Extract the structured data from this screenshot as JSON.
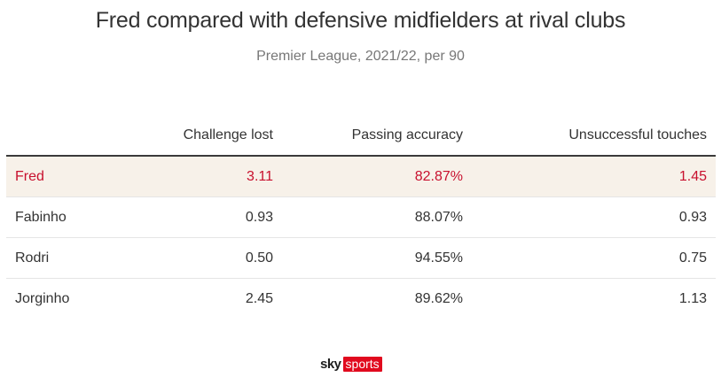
{
  "title": "Fred compared with defensive midfielders at rival clubs",
  "subtitle": "Premier League, 2021/22, per 90",
  "table": {
    "headers": [
      "",
      "Challenge lost",
      "Passing accuracy",
      "Unsuccessful touches"
    ],
    "rows": [
      {
        "name": "Fred",
        "challenge_lost": "3.11",
        "passing_accuracy": "82.87%",
        "unsuccessful_touches": "1.45"
      },
      {
        "name": "Fabinho",
        "challenge_lost": "0.93",
        "passing_accuracy": "88.07%",
        "unsuccessful_touches": "0.93"
      },
      {
        "name": "Rodri",
        "challenge_lost": "0.50",
        "passing_accuracy": "94.55%",
        "unsuccessful_touches": "0.75"
      },
      {
        "name": "Jorginho",
        "challenge_lost": "2.45",
        "passing_accuracy": "89.62%",
        "unsuccessful_touches": "1.13"
      }
    ],
    "highlight_color": "#c8102e",
    "highlight_background": "#f7f1e9"
  },
  "logo": {
    "sky": "sky",
    "sports": "sports"
  }
}
